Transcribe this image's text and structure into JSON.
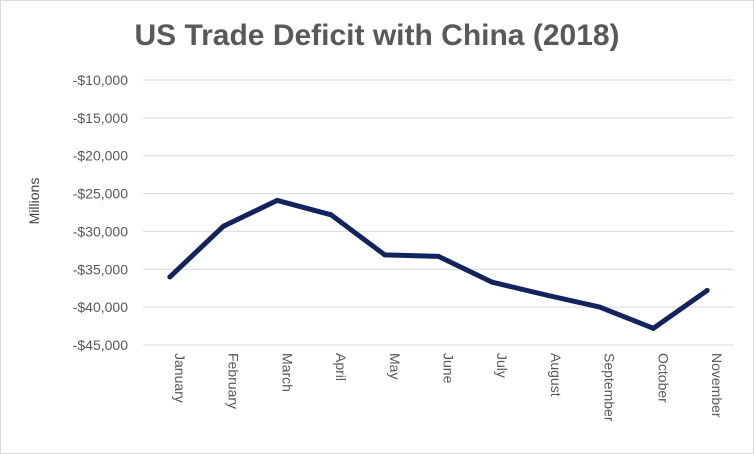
{
  "chart_data": {
    "type": "line",
    "title": "US Trade Deficit with China (2018)",
    "xlabel": "",
    "ylabel": "Millions",
    "categories": [
      "January",
      "February",
      "March",
      "April",
      "May",
      "June",
      "July",
      "August",
      "September",
      "October",
      "November"
    ],
    "series": [
      {
        "values": [
          -36000,
          -29300,
          -25900,
          -27800,
          -33100,
          -33300,
          -36700,
          -38400,
          -40000,
          -42800,
          -37800
        ]
      }
    ],
    "ylim": [
      -45000,
      -10000
    ],
    "yticks": [
      -10000,
      -15000,
      -20000,
      -25000,
      -30000,
      -35000,
      -40000,
      -45000
    ],
    "ytick_labels": [
      "-$10,000",
      "-$15,000",
      "-$20,000",
      "-$25,000",
      "-$30,000",
      "-$35,000",
      "-$40,000",
      "-$45,000"
    ],
    "grid": true,
    "legend": "none",
    "line_color": "#13235e"
  }
}
